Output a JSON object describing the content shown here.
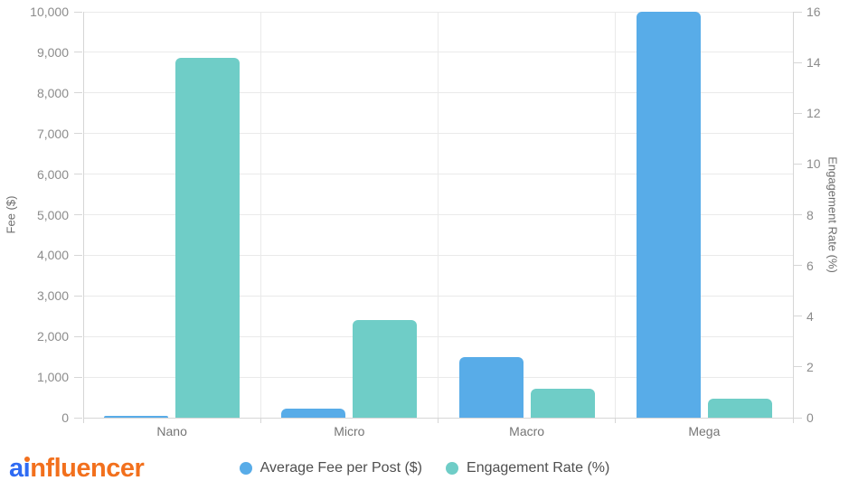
{
  "logo": {
    "text": "ainfluencer",
    "part_a": "a",
    "part_i": "i",
    "part_rest": "nfluencer",
    "blue": "#2f6bf3",
    "orange": "#f2701d"
  },
  "chart_data": {
    "type": "bar",
    "title": "",
    "categories": [
      "Nano",
      "Micro",
      "Macro",
      "Mega"
    ],
    "series": [
      {
        "name": "Average Fee per Post ($)",
        "axis": "left",
        "color": "#58ace8",
        "values": [
          50,
          220,
          1500,
          10000
        ]
      },
      {
        "name": "Engagement Rate (%)",
        "axis": "right",
        "color": "#6fcdc7",
        "values": [
          14.2,
          3.86,
          1.15,
          0.76
        ]
      }
    ],
    "left_axis": {
      "label": "Fee ($)",
      "min": 0,
      "max": 10000,
      "tick_labels": [
        "10,000",
        "9,000",
        "8,000",
        "7,000",
        "6,000",
        "5,000",
        "4,000",
        "3,000",
        "2,000",
        "1,000",
        "0"
      ],
      "tick_values": [
        10000,
        9000,
        8000,
        7000,
        6000,
        5000,
        4000,
        3000,
        2000,
        1000,
        0
      ]
    },
    "right_axis": {
      "label": "Engagement Rate (%)",
      "min": 0,
      "max": 16,
      "tick_labels": [
        "16",
        "14",
        "12",
        "10",
        "8",
        "6",
        "4",
        "2",
        "0"
      ],
      "tick_values": [
        16,
        14,
        12,
        10,
        8,
        6,
        4,
        2,
        0
      ]
    },
    "legend_position": "bottom",
    "grid": true,
    "colors": {
      "gridline": "#eaeaea",
      "axis_line": "#d6d6d6",
      "tick_text": "#8c8c8c",
      "category_text": "#757575",
      "axis_title_text": "#6e6e6e",
      "legend_text": "#4f4f4f"
    }
  }
}
